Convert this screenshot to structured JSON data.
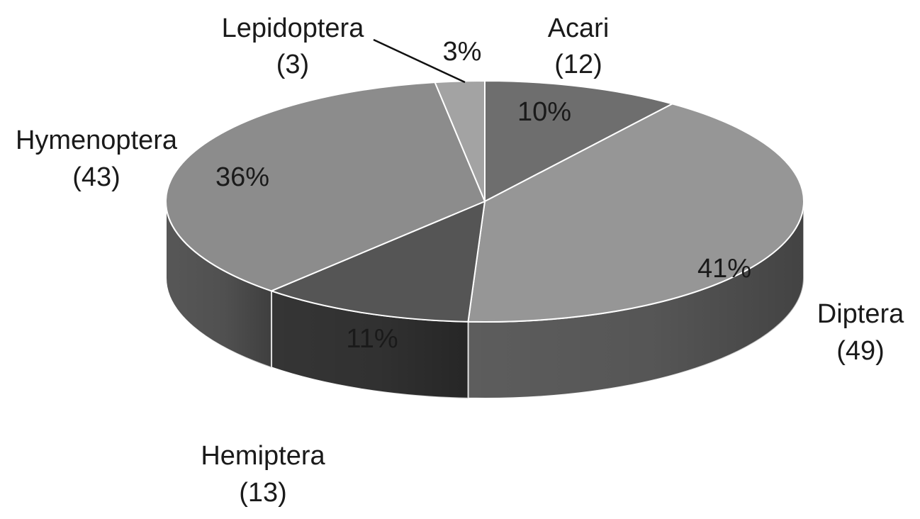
{
  "chart_data": {
    "type": "pie",
    "style": "3d",
    "color_scheme": "grayscale",
    "slices": [
      {
        "label": "Acari",
        "count": 12,
        "count_text": "(12)",
        "percent": 10,
        "percent_text": "10%",
        "color": "#6e6e6e"
      },
      {
        "label": "Diptera",
        "count": 49,
        "count_text": "(49)",
        "percent": 41,
        "percent_text": "41%",
        "color": "#969696"
      },
      {
        "label": "Hemiptera",
        "count": 13,
        "count_text": "(13)",
        "percent": 11,
        "percent_text": "11%",
        "color": "#555555"
      },
      {
        "label": "Hymenoptera",
        "count": 43,
        "count_text": "(43)",
        "percent": 36,
        "percent_text": "36%",
        "color": "#8c8c8c"
      },
      {
        "label": "Lepidoptera",
        "count": 3,
        "count_text": "(3)",
        "percent": 3,
        "percent_text": "3%",
        "color": "#a3a3a3"
      }
    ]
  }
}
